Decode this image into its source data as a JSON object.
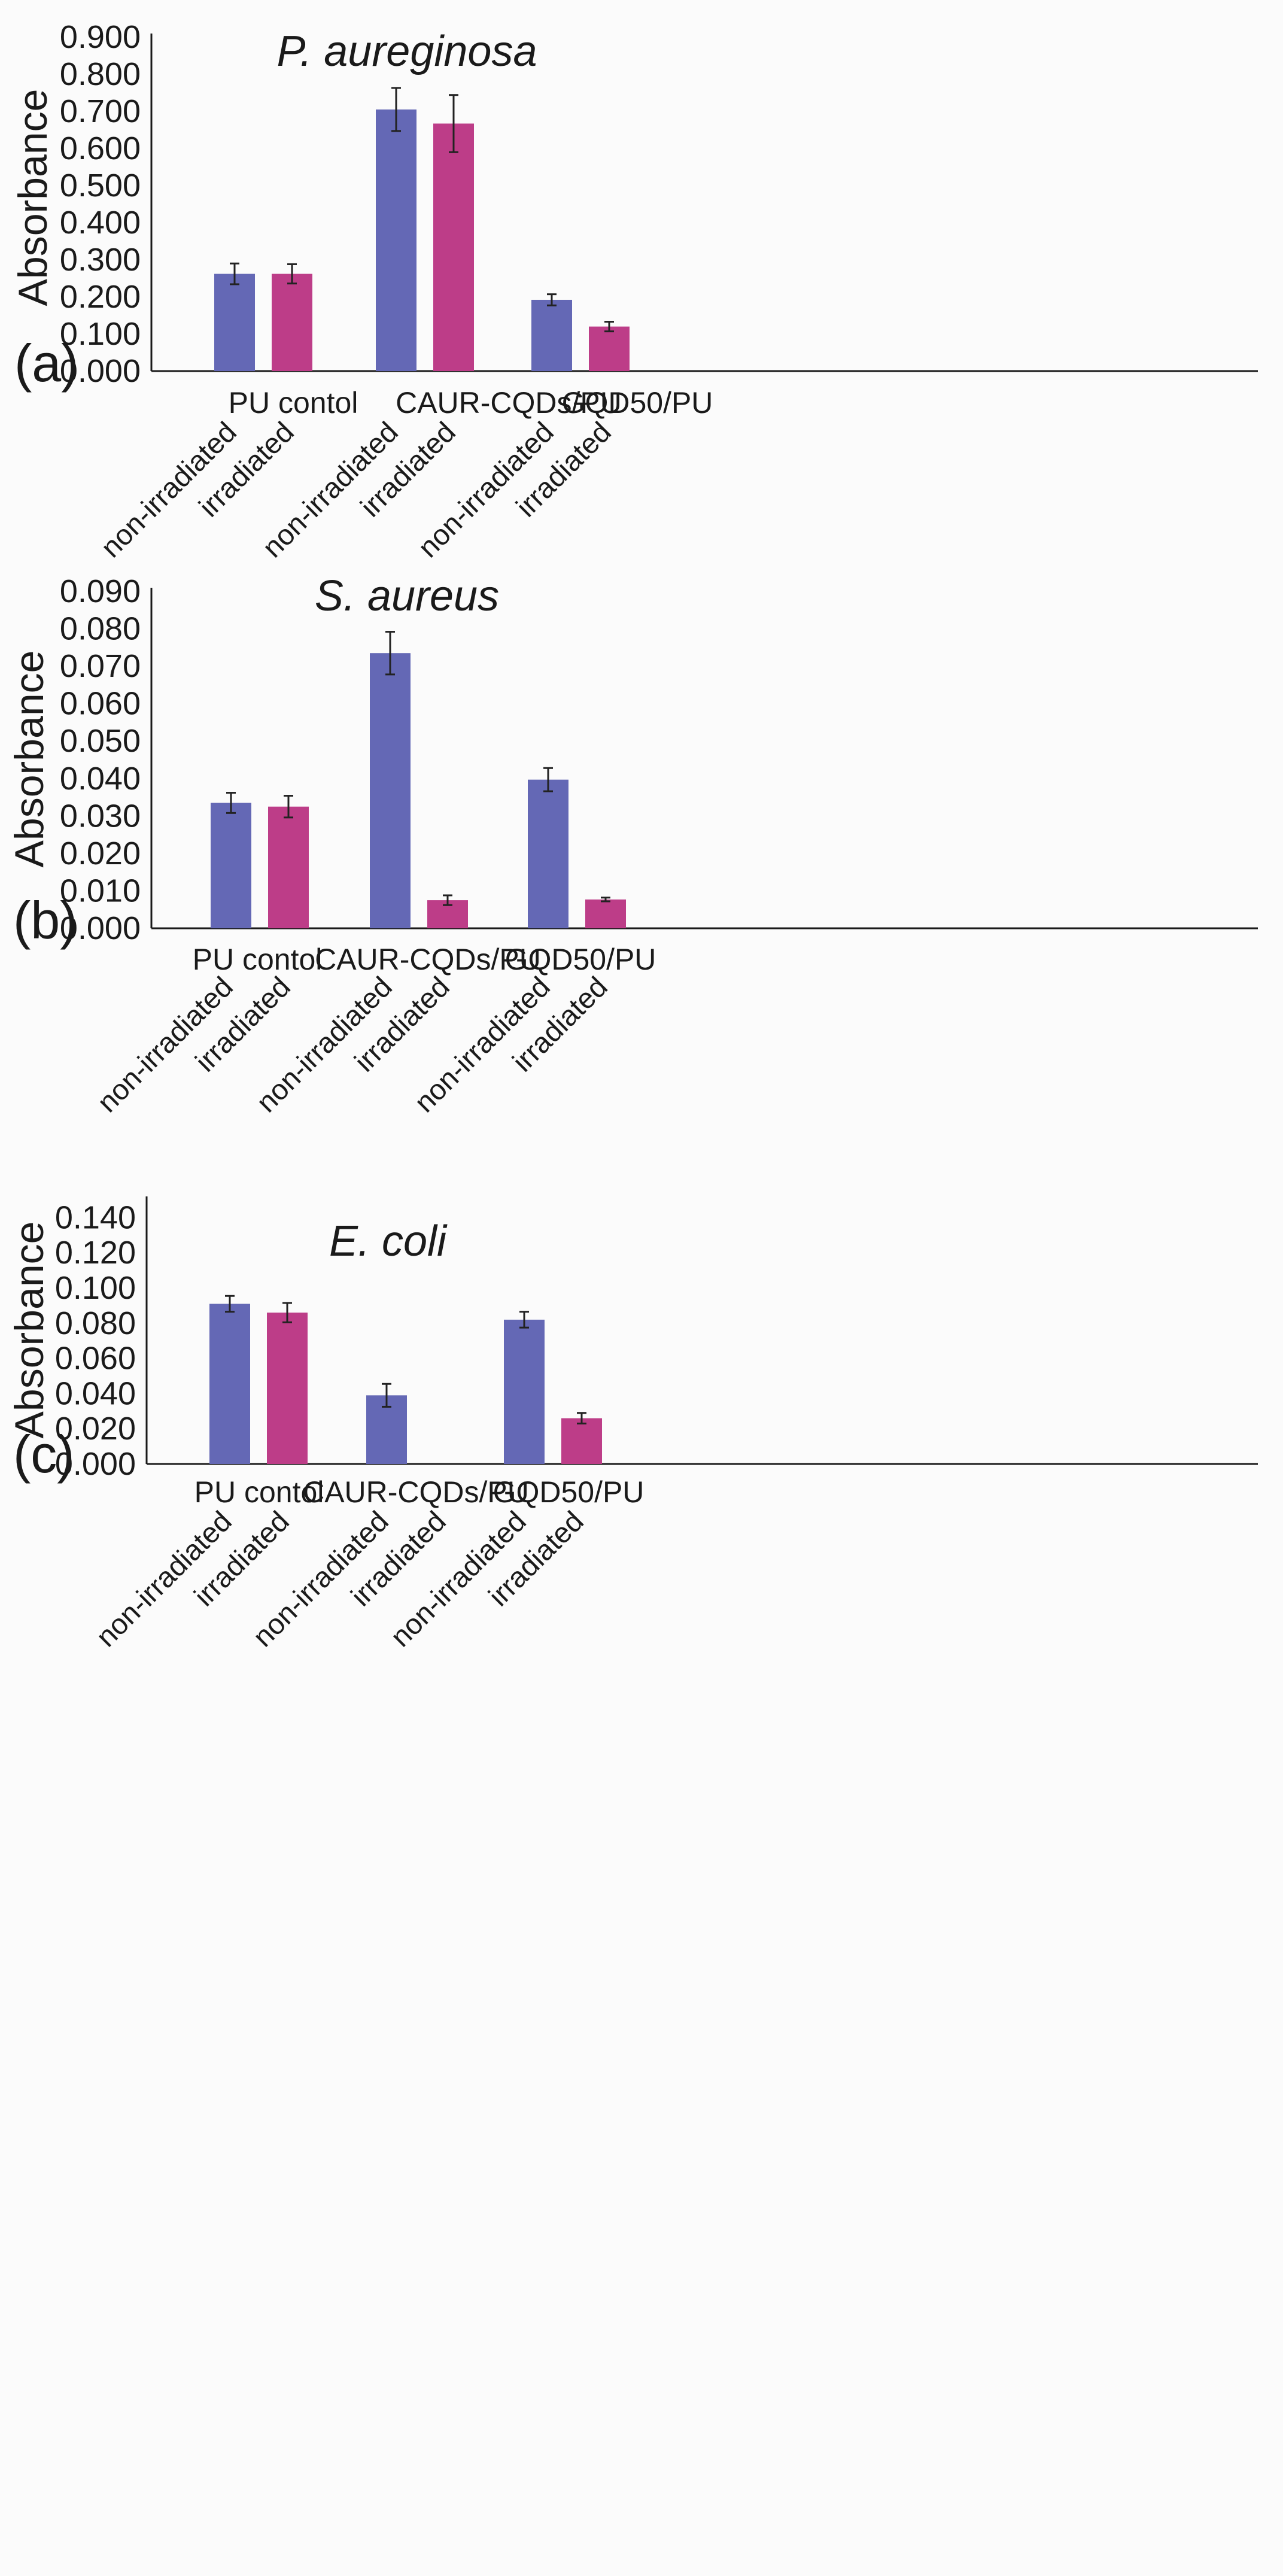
{
  "colors": {
    "non_irradiated": "#6468b5",
    "irradiated": "#bd3d88",
    "axis": "#1a1a1a"
  },
  "chart_data": [
    {
      "type": "bar",
      "panel": "(a)",
      "title": "P. aureginosa",
      "ylabel": "Absorbance",
      "ylim": [
        0,
        0.9
      ],
      "yticks": [
        "0.000",
        "0.100",
        "0.200",
        "0.300",
        "0.400",
        "0.500",
        "0.600",
        "0.700",
        "0.800",
        "0.900"
      ],
      "categories": [
        "PU contol",
        "CAUR-CQDs/PU",
        "GQD50/PU"
      ],
      "series": [
        {
          "name": "non-irradiated",
          "values": [
            0.262,
            0.705,
            0.192
          ],
          "errors": [
            0.028,
            0.058,
            0.015
          ]
        },
        {
          "name": "irradiated",
          "values": [
            0.262,
            0.667,
            0.12
          ],
          "errors": [
            0.026,
            0.077,
            0.013
          ]
        }
      ]
    },
    {
      "type": "bar",
      "panel": "(b)",
      "title": "S. aureus",
      "ylabel": "Absorbance",
      "ylim": [
        0,
        0.09
      ],
      "yticks": [
        "0.000",
        "0.010",
        "0.020",
        "0.030",
        "0.040",
        "0.050",
        "0.060",
        "0.070",
        "0.080",
        "0.090"
      ],
      "categories": [
        "PU contol",
        "CAUR-CQDs/PU",
        "GQD50/PU"
      ],
      "series": [
        {
          "name": "non-irradiated",
          "values": [
            0.0335,
            0.0735,
            0.0397
          ],
          "errors": [
            0.0027,
            0.0057,
            0.0031
          ]
        },
        {
          "name": "irradiated",
          "values": [
            0.0325,
            0.0075,
            0.0077
          ],
          "errors": [
            0.0029,
            0.0013,
            0.0005
          ]
        }
      ]
    },
    {
      "type": "bar",
      "panel": "(c)",
      "title": "E. coli",
      "ylabel": "Absorbance",
      "ylim": [
        0,
        0.15
      ],
      "yticks": [
        "0.000",
        "0.020",
        "0.040",
        "0.060",
        "0.080",
        "0.100",
        "0.120",
        "0.140"
      ],
      "categories": [
        "PU contol",
        "CAUR-CQDs/PU",
        "GQD50/PU"
      ],
      "series": [
        {
          "name": "non-irradiated",
          "values": [
            0.091,
            0.039,
            0.082
          ],
          "errors": [
            0.0045,
            0.0065,
            0.0045
          ]
        },
        {
          "name": "irradiated",
          "values": [
            0.086,
            0.0,
            0.026
          ],
          "errors": [
            0.0055,
            0,
            0.003
          ]
        }
      ]
    }
  ]
}
